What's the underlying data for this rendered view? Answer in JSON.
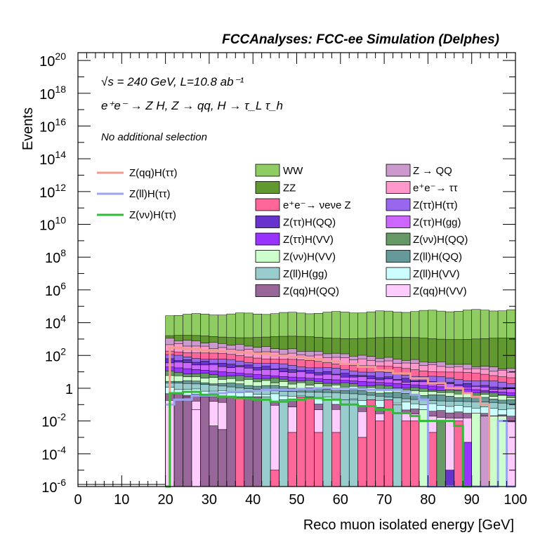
{
  "chart_data": {
    "type": "bar",
    "title": "FCCAnalyses: FCC-ee Simulation (Delphes)",
    "annotations": {
      "energy_lumi": "√s = 240 GeV, L=10.8 ab⁻¹",
      "process": "e⁺e⁻ → Z H, Z → qq, H → τ_L τ_h",
      "selection": "No additional selection"
    },
    "xlabel": "Reco muon isolated energy [GeV]",
    "ylabel": "Events",
    "xlim": [
      0,
      100
    ],
    "ylim": [
      1e-06,
      3e+20
    ],
    "log_y": true,
    "x_ticks": [
      "0",
      "10",
      "20",
      "30",
      "40",
      "50",
      "60",
      "70",
      "80",
      "90",
      "100"
    ],
    "y_ticks": [
      {
        "mant": "10",
        "exp": "20",
        "value": 1e+20
      },
      {
        "mant": "10",
        "exp": "18",
        "value": 1e+18
      },
      {
        "mant": "10",
        "exp": "16",
        "value": 1e+16
      },
      {
        "mant": "10",
        "exp": "14",
        "value": 100000000000000.0
      },
      {
        "mant": "10",
        "exp": "12",
        "value": 1000000000000.0
      },
      {
        "mant": "10",
        "exp": "10",
        "value": 10000000000.0
      },
      {
        "mant": "10",
        "exp": "8",
        "value": 100000000.0
      },
      {
        "mant": "10",
        "exp": "6",
        "value": 1000000.0
      },
      {
        "mant": "10",
        "exp": "4",
        "value": 10000.0
      },
      {
        "mant": "10",
        "exp": "2",
        "value": 100.0
      },
      {
        "mant": "1",
        "exp": "",
        "value": 1
      },
      {
        "mant": "10",
        "exp": "-2",
        "value": 0.01
      },
      {
        "mant": "10",
        "exp": "-4",
        "value": 0.0001
      },
      {
        "mant": "10",
        "exp": "-6",
        "value": 1e-06
      }
    ],
    "bin_width": 2,
    "stack_x_range": [
      20,
      100
    ],
    "stacked_envelopes": [
      {
        "name": "WW",
        "color": "#8fcd63",
        "left": 30000,
        "right": 60000
      },
      {
        "name": "ZZ",
        "color": "#61982f",
        "left": 1500,
        "right": 1000
      },
      {
        "name": "Z → QQ",
        "color": "#cc99cc",
        "left": 1000,
        "right": 15
      },
      {
        "name": "e⁺e⁻→ ττ",
        "color": "#ff99cc",
        "left": 500,
        "right": 10
      },
      {
        "name": "e⁺e⁻→ νeνe Z",
        "color": "#ff6699",
        "left": 200,
        "right": 5
      },
      {
        "name": "Z(ττ)H(ττ)",
        "color": "#9966ee",
        "left": 100,
        "right": 2
      },
      {
        "name": "Z(ττ)H(QQ)",
        "color": "#6633cc",
        "left": 60,
        "right": 1
      },
      {
        "name": "Z(ττ)H(gg)",
        "color": "#cc66ff",
        "left": 40,
        "right": 0.8
      },
      {
        "name": "Z(ττ)H(VV)",
        "color": "#9933ff",
        "left": 20,
        "right": 0.5
      },
      {
        "name": "Z(νν)H(QQ)",
        "color": "#669966",
        "left": 10,
        "right": 0.4
      },
      {
        "name": "Z(νν)H(VV)",
        "color": "#ccffcc",
        "left": 6,
        "right": 0.3
      },
      {
        "name": "Z(ll)H(QQ)",
        "color": "#669999",
        "left": 3,
        "right": 0.2
      },
      {
        "name": "Z(ll)H(gg)",
        "color": "#99cccc",
        "left": 2,
        "right": 0.1
      },
      {
        "name": "Z(ll)H(VV)",
        "color": "#ccffff",
        "left": 1,
        "right": 0.05
      },
      {
        "name": "Z(qq)H(QQ)",
        "color": "#996699",
        "left": 0.5,
        "right": 0.02
      },
      {
        "name": "Z(qq)H(VV)",
        "color": "#ffccff",
        "left": 0.2,
        "right": 0.01
      }
    ],
    "low_bins": [
      {
        "x0": 22,
        "color": "#996699",
        "value": 0.2
      },
      {
        "x0": 24,
        "color": "#996699",
        "value": 0.3
      },
      {
        "x0": 26,
        "color": "#ffccff",
        "value": 0.05
      },
      {
        "x0": 28,
        "color": "#996699",
        "value": 0.3
      },
      {
        "x0": 30,
        "color": "#996699",
        "value": 0.005
      },
      {
        "x0": 32,
        "color": "#996699",
        "value": 0.003
      },
      {
        "x0": 34,
        "color": "#996699",
        "value": 0.3
      },
      {
        "x0": 36,
        "color": "#ff6699",
        "value": 0.3
      },
      {
        "x0": 38,
        "color": "#996699",
        "value": 0.3
      },
      {
        "x0": 40,
        "color": "#996699",
        "value": 0.3
      },
      {
        "x0": 42,
        "color": "#99cccc",
        "value": 0.3
      },
      {
        "x0": 44,
        "color": "#ff6699",
        "value": 1e-05
      },
      {
        "x0": 46,
        "color": "#99cccc",
        "value": 0.2
      },
      {
        "x0": 48,
        "color": "#ff6699",
        "value": 0.002
      },
      {
        "x0": 50,
        "color": "#ff6699",
        "value": 0.3
      },
      {
        "x0": 52,
        "color": "#ff6699",
        "value": 0.3
      },
      {
        "x0": 54,
        "color": "#ff6699",
        "value": 0.002
      },
      {
        "x0": 56,
        "color": "#99cccc",
        "value": 0.2
      },
      {
        "x0": 58,
        "color": "#ff6699",
        "value": 0.002
      },
      {
        "x0": 60,
        "color": "#99cccc",
        "value": 0.2
      },
      {
        "x0": 62,
        "color": "#99cccc",
        "value": 0.2
      },
      {
        "x0": 64,
        "color": "#ff6699",
        "value": 0.001
      },
      {
        "x0": 66,
        "color": "#ff6699",
        "value": 0.2
      },
      {
        "x0": 68,
        "color": "#ff6699",
        "value": 0.01
      },
      {
        "x0": 70,
        "color": "#ff6699",
        "value": 0.2
      },
      {
        "x0": 72,
        "color": "#99cccc",
        "value": 0.1
      },
      {
        "x0": 74,
        "color": "#ff6699",
        "value": 0.01
      },
      {
        "x0": 76,
        "color": "#ff6699",
        "value": 0.01
      },
      {
        "x0": 78,
        "color": "#ccffcc",
        "value": 0.05
      },
      {
        "x0": 80,
        "color": "#ff6699",
        "value": 0.002
      },
      {
        "x0": 82,
        "color": "#669966",
        "value": 0.01
      },
      {
        "x0": 84,
        "color": "#6633cc",
        "value": 1e-05
      },
      {
        "x0": 86,
        "color": "#ff6699",
        "value": 0.01
      },
      {
        "x0": 88,
        "color": "#9933ff",
        "value": 0.0005
      },
      {
        "x0": 90,
        "color": "#ccffcc",
        "value": 0.03
      },
      {
        "x0": 92,
        "color": "#cc99cc",
        "value": 0.02
      },
      {
        "x0": 94,
        "color": "#ccffcc",
        "value": 0.02
      },
      {
        "x0": 96,
        "color": "#ccffcc",
        "value": 0.02
      }
    ],
    "signal_lines": [
      {
        "name": "Z(qq)H(ττ)",
        "color": "#f29b8f",
        "edges": [
          20,
          21,
          24,
          28,
          32,
          36,
          40,
          44,
          48,
          52,
          56,
          60,
          64,
          68,
          72,
          76,
          80,
          84,
          88,
          90,
          92,
          94,
          96
        ],
        "values": [
          1e-06,
          300,
          250,
          200,
          180,
          150,
          130,
          100,
          80,
          60,
          45,
          30,
          20,
          12,
          8,
          4,
          2,
          1,
          0.5,
          0.3,
          0.1,
          1e-06
        ]
      },
      {
        "name": "Z(ll)H(ττ)",
        "color": "#9aa5f2",
        "edges": [
          20,
          22,
          26,
          30,
          34,
          38,
          42,
          46,
          50,
          54,
          58,
          62,
          66,
          70,
          74,
          76,
          78,
          80,
          96,
          98,
          100
        ],
        "values": [
          0.1,
          0.2,
          0.35,
          0.5,
          0.6,
          0.7,
          0.8,
          0.8,
          0.9,
          1.0,
          0.9,
          0.9,
          0.8,
          0.8,
          0.6,
          0.4,
          0.2,
          1e-06,
          0.01,
          1e-06
        ]
      },
      {
        "name": "Z(νν)H(ττ)",
        "color": "#33bb33",
        "edges": [
          20,
          21,
          24,
          28,
          32,
          36,
          40,
          44,
          48,
          52,
          56,
          60,
          64,
          68,
          72,
          76,
          78,
          80,
          82,
          84,
          86,
          88,
          90
        ],
        "values": [
          1e-06,
          0.5,
          0.6,
          0.4,
          0.3,
          0.25,
          0.2,
          0.15,
          0.2,
          0.25,
          0.2,
          0.1,
          0.08,
          0.05,
          0.03,
          0.02,
          0.01,
          0.01,
          0.01,
          0.01,
          0.005,
          1e-06
        ]
      }
    ],
    "legend": {
      "placement": "top",
      "lines": [
        {
          "name": "Z(qq)H(ττ)",
          "color": "#f29b8f"
        },
        {
          "name": "Z(ll)H(ττ)",
          "color": "#9aa5f2"
        },
        {
          "name": "Z(νν)H(ττ)",
          "color": "#33bb33"
        }
      ],
      "boxes_left": [
        {
          "name": "WW",
          "color": "#8fcd63"
        },
        {
          "name": "ZZ",
          "color": "#61982f"
        },
        {
          "name": "e⁺e⁻→ νeνe Z",
          "color": "#ff6699"
        },
        {
          "name": "Z(ττ)H(QQ)",
          "color": "#6633cc"
        },
        {
          "name": "Z(ττ)H(VV)",
          "color": "#9933ff"
        },
        {
          "name": "Z(νν)H(VV)",
          "color": "#ccffcc"
        },
        {
          "name": "Z(ll)H(gg)",
          "color": "#99cccc"
        },
        {
          "name": "Z(qq)H(QQ)",
          "color": "#996699"
        }
      ],
      "boxes_right": [
        {
          "name": "Z → QQ",
          "color": "#cc99cc"
        },
        {
          "name": "e⁺e⁻→ ττ",
          "color": "#ff99cc"
        },
        {
          "name": "Z(ττ)H(ττ)",
          "color": "#9966ee"
        },
        {
          "name": "Z(ττ)H(gg)",
          "color": "#cc66ff"
        },
        {
          "name": "Z(νν)H(QQ)",
          "color": "#669966"
        },
        {
          "name": "Z(ll)H(QQ)",
          "color": "#669999"
        },
        {
          "name": "Z(ll)H(VV)",
          "color": "#ccffff"
        },
        {
          "name": "Z(qq)H(VV)",
          "color": "#ffccff"
        }
      ]
    }
  }
}
